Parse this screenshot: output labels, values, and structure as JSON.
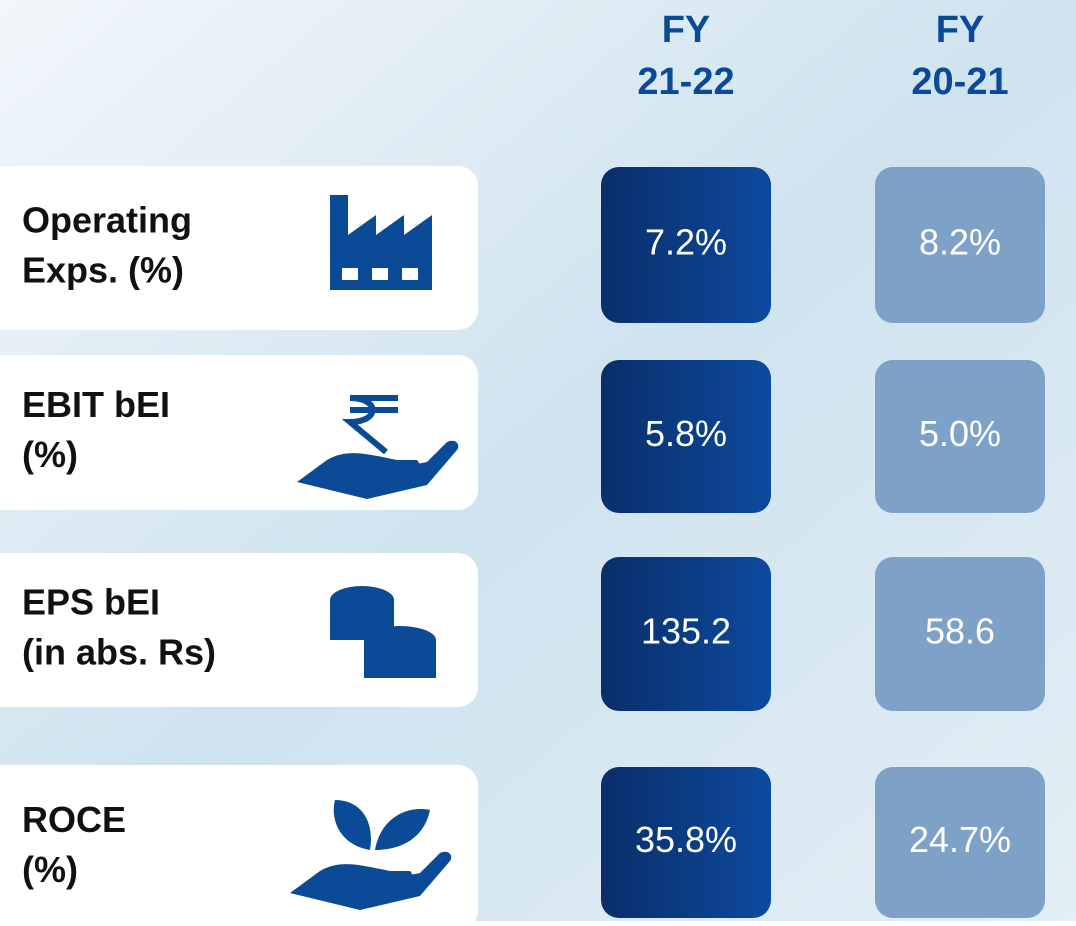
{
  "columns": [
    {
      "lines": [
        "FY",
        "21-22"
      ]
    },
    {
      "lines": [
        "FY",
        "20-21"
      ]
    }
  ],
  "rows": [
    {
      "label": [
        "Operating",
        "Exps. (%)"
      ],
      "values": [
        "7.2%",
        "8.2%"
      ]
    },
    {
      "label": [
        "EBIT bEI",
        "(%)"
      ],
      "values": [
        "5.8%",
        "5.0%"
      ]
    },
    {
      "label": [
        "EPS bEI",
        "(in abs. Rs)"
      ],
      "values": [
        "135.2",
        "58.6"
      ]
    },
    {
      "label": [
        "ROCE",
        "(%)"
      ],
      "values": [
        "35.8%",
        "24.7%"
      ]
    }
  ]
}
